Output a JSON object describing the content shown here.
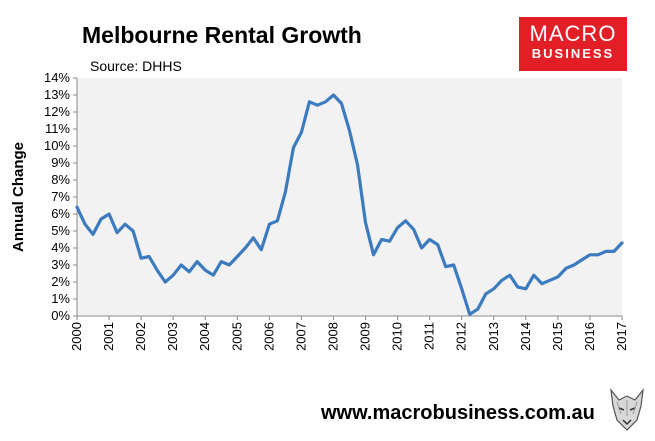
{
  "header": {
    "title": "Melbourne Rental Growth",
    "source": "Source: DHHS"
  },
  "logo": {
    "line1": "MACRO",
    "line2": "BUSINESS"
  },
  "footer": {
    "url": "www.macrobusiness.com.au"
  },
  "colors": {
    "line": "#3d7bbf",
    "plot_bg": "#f2f2f2",
    "logo_bg": "#e21e26"
  },
  "chart_data": {
    "type": "line",
    "title": "Melbourne Rental Growth",
    "ylabel": "Annual Change",
    "xlabel": "",
    "xlim": [
      2000,
      2017
    ],
    "ylim": [
      0,
      14
    ],
    "y_ticks": [
      "0%",
      "1%",
      "2%",
      "3%",
      "4%",
      "5%",
      "6%",
      "7%",
      "8%",
      "9%",
      "10%",
      "11%",
      "12%",
      "13%",
      "14%"
    ],
    "x_ticks": [
      "2000",
      "2001",
      "2002",
      "2003",
      "2004",
      "2005",
      "2006",
      "2007",
      "2008",
      "2009",
      "2010",
      "2011",
      "2012",
      "2013",
      "2014",
      "2015",
      "2016",
      "2017"
    ],
    "grid": false,
    "legend": "none",
    "series": [
      {
        "values": [
          [
            2000.0,
            6.4
          ],
          [
            2000.25,
            5.4
          ],
          [
            2000.5,
            4.8
          ],
          [
            2000.75,
            5.7
          ],
          [
            2001.0,
            6.0
          ],
          [
            2001.25,
            4.9
          ],
          [
            2001.5,
            5.4
          ],
          [
            2001.75,
            5.0
          ],
          [
            2002.0,
            3.4
          ],
          [
            2002.25,
            3.5
          ],
          [
            2002.5,
            2.7
          ],
          [
            2002.75,
            2.0
          ],
          [
            2003.0,
            2.4
          ],
          [
            2003.25,
            3.0
          ],
          [
            2003.5,
            2.6
          ],
          [
            2003.75,
            3.2
          ],
          [
            2004.0,
            2.7
          ],
          [
            2004.25,
            2.4
          ],
          [
            2004.5,
            3.2
          ],
          [
            2004.75,
            3.0
          ],
          [
            2005.0,
            3.5
          ],
          [
            2005.25,
            4.0
          ],
          [
            2005.5,
            4.6
          ],
          [
            2005.75,
            3.9
          ],
          [
            2006.0,
            5.4
          ],
          [
            2006.25,
            5.6
          ],
          [
            2006.5,
            7.3
          ],
          [
            2006.75,
            9.9
          ],
          [
            2007.0,
            10.8
          ],
          [
            2007.25,
            12.6
          ],
          [
            2007.5,
            12.4
          ],
          [
            2007.75,
            12.6
          ],
          [
            2008.0,
            13.0
          ],
          [
            2008.25,
            12.5
          ],
          [
            2008.5,
            10.9
          ],
          [
            2008.75,
            8.9
          ],
          [
            2009.0,
            5.5
          ],
          [
            2009.25,
            3.6
          ],
          [
            2009.5,
            4.5
          ],
          [
            2009.75,
            4.4
          ],
          [
            2010.0,
            5.2
          ],
          [
            2010.25,
            5.6
          ],
          [
            2010.5,
            5.1
          ],
          [
            2010.75,
            4.0
          ],
          [
            2011.0,
            4.5
          ],
          [
            2011.25,
            4.2
          ],
          [
            2011.5,
            2.9
          ],
          [
            2011.75,
            3.0
          ],
          [
            2012.0,
            1.6
          ],
          [
            2012.25,
            0.1
          ],
          [
            2012.5,
            0.4
          ],
          [
            2012.75,
            1.3
          ],
          [
            2013.0,
            1.6
          ],
          [
            2013.25,
            2.1
          ],
          [
            2013.5,
            2.4
          ],
          [
            2013.75,
            1.7
          ],
          [
            2014.0,
            1.6
          ],
          [
            2014.25,
            2.4
          ],
          [
            2014.5,
            1.9
          ],
          [
            2014.75,
            2.1
          ],
          [
            2015.0,
            2.3
          ],
          [
            2015.25,
            2.8
          ],
          [
            2015.5,
            3.0
          ],
          [
            2015.75,
            3.3
          ],
          [
            2016.0,
            3.6
          ],
          [
            2016.25,
            3.6
          ],
          [
            2016.5,
            3.8
          ],
          [
            2016.75,
            3.8
          ],
          [
            2017.0,
            4.3
          ]
        ]
      }
    ]
  }
}
